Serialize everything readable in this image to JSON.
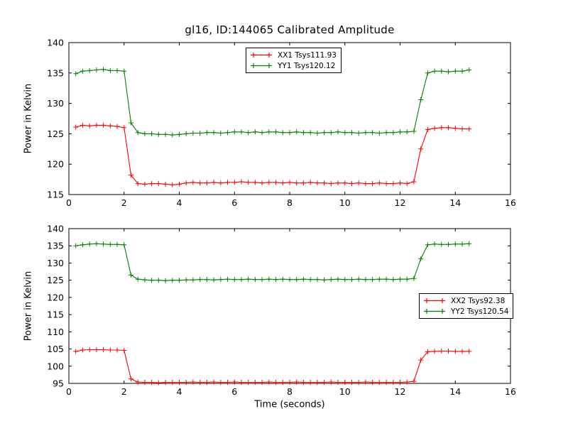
{
  "title": "gl16, ID:144065 Calibrated Amplitude",
  "colors": {
    "red": "#ff0000",
    "green": "#008000",
    "axis": "#000000",
    "background": "#ffffff"
  },
  "chart_data": [
    {
      "type": "line",
      "ylabel": "Power in Kelvin",
      "xlabel": "",
      "xlim": [
        0,
        16
      ],
      "ylim": [
        115,
        140
      ],
      "xticks": [
        0,
        2,
        4,
        6,
        8,
        10,
        12,
        14,
        16
      ],
      "yticks": [
        115,
        120,
        125,
        130,
        135,
        140
      ],
      "grid": false,
      "legend_position": "upper center",
      "x": [
        0.25,
        0.5,
        0.75,
        1,
        1.25,
        1.5,
        1.75,
        2,
        2.25,
        2.5,
        2.75,
        3,
        3.25,
        3.5,
        3.75,
        4,
        4.25,
        4.5,
        4.75,
        5,
        5.25,
        5.5,
        5.75,
        6,
        6.25,
        6.5,
        6.75,
        7,
        7.25,
        7.5,
        7.75,
        8,
        8.25,
        8.5,
        8.75,
        9,
        9.25,
        9.5,
        9.75,
        10,
        10.25,
        10.5,
        10.75,
        11,
        11.25,
        11.5,
        11.75,
        12,
        12.25,
        12.5,
        12.75,
        13,
        13.25,
        13.5,
        13.75,
        14,
        14.25,
        14.5
      ],
      "series": [
        {
          "name": "XX1 Tsys111.93",
          "color": "#ff0000",
          "marker": "+",
          "linestyle": "-",
          "values": [
            126.1,
            126.4,
            126.3,
            126.4,
            126.4,
            126.3,
            126.2,
            126.0,
            118.2,
            116.8,
            116.7,
            116.8,
            116.8,
            116.7,
            116.6,
            116.7,
            116.9,
            117.0,
            116.9,
            116.9,
            117.0,
            116.9,
            117.0,
            117.0,
            117.1,
            117.0,
            117.0,
            116.9,
            117.0,
            117.0,
            116.9,
            117.0,
            116.9,
            116.9,
            117.0,
            116.9,
            116.9,
            116.8,
            116.9,
            116.9,
            116.8,
            116.9,
            116.8,
            116.8,
            116.9,
            116.8,
            116.8,
            116.9,
            116.8,
            117.1,
            122.5,
            125.7,
            125.9,
            126.0,
            126.0,
            125.9,
            125.8,
            125.8
          ]
        },
        {
          "name": "YY1 Tsys120.12",
          "color": "#008000",
          "marker": "+",
          "linestyle": "-",
          "values": [
            134.9,
            135.3,
            135.4,
            135.5,
            135.6,
            135.4,
            135.4,
            135.3,
            126.8,
            125.2,
            125.0,
            125.0,
            124.9,
            124.9,
            124.8,
            124.9,
            125.0,
            125.1,
            125.1,
            125.2,
            125.2,
            125.1,
            125.2,
            125.3,
            125.3,
            125.2,
            125.3,
            125.2,
            125.3,
            125.3,
            125.2,
            125.2,
            125.3,
            125.2,
            125.2,
            125.1,
            125.2,
            125.2,
            125.3,
            125.2,
            125.2,
            125.1,
            125.2,
            125.2,
            125.1,
            125.2,
            125.2,
            125.3,
            125.3,
            125.4,
            130.6,
            135.0,
            135.3,
            135.3,
            135.2,
            135.3,
            135.3,
            135.5
          ]
        }
      ]
    },
    {
      "type": "line",
      "ylabel": "Power in Kelvin",
      "xlabel": "Time (seconds)",
      "xlim": [
        0,
        16
      ],
      "ylim": [
        95,
        140
      ],
      "xticks": [
        0,
        2,
        4,
        6,
        8,
        10,
        12,
        14,
        16
      ],
      "yticks": [
        95,
        100,
        105,
        110,
        115,
        120,
        125,
        130,
        135,
        140
      ],
      "grid": false,
      "legend_position": "center right",
      "x": [
        0.25,
        0.5,
        0.75,
        1,
        1.25,
        1.5,
        1.75,
        2,
        2.25,
        2.5,
        2.75,
        3,
        3.25,
        3.5,
        3.75,
        4,
        4.25,
        4.5,
        4.75,
        5,
        5.25,
        5.5,
        5.75,
        6,
        6.25,
        6.5,
        6.75,
        7,
        7.25,
        7.5,
        7.75,
        8,
        8.25,
        8.5,
        8.75,
        9,
        9.25,
        9.5,
        9.75,
        10,
        10.25,
        10.5,
        10.75,
        11,
        11.25,
        11.5,
        11.75,
        12,
        12.25,
        12.5,
        12.75,
        13,
        13.25,
        13.5,
        13.75,
        14,
        14.25,
        14.5
      ],
      "series": [
        {
          "name": "XX2 Tsys92.38",
          "color": "#ff0000",
          "marker": "+",
          "linestyle": "-",
          "values": [
            104.3,
            104.7,
            104.8,
            104.8,
            104.8,
            104.7,
            104.7,
            104.6,
            96.3,
            95.4,
            95.3,
            95.3,
            95.2,
            95.3,
            95.3,
            95.3,
            95.3,
            95.4,
            95.3,
            95.3,
            95.4,
            95.3,
            95.3,
            95.4,
            95.3,
            95.3,
            95.3,
            95.3,
            95.4,
            95.3,
            95.3,
            95.3,
            95.4,
            95.3,
            95.3,
            95.3,
            95.3,
            95.4,
            95.3,
            95.3,
            95.3,
            95.3,
            95.4,
            95.3,
            95.3,
            95.3,
            95.3,
            95.3,
            95.4,
            95.6,
            101.8,
            104.2,
            104.3,
            104.4,
            104.4,
            104.3,
            104.3,
            104.3
          ]
        },
        {
          "name": "YY2 Tsys120.54",
          "color": "#008000",
          "marker": "+",
          "linestyle": "-",
          "values": [
            135.0,
            135.3,
            135.5,
            135.6,
            135.5,
            135.4,
            135.4,
            135.3,
            126.5,
            125.3,
            125.1,
            125.0,
            125.0,
            124.9,
            125.0,
            125.0,
            125.1,
            125.1,
            125.2,
            125.2,
            125.1,
            125.2,
            125.3,
            125.2,
            125.2,
            125.3,
            125.2,
            125.2,
            125.3,
            125.2,
            125.3,
            125.2,
            125.2,
            125.3,
            125.2,
            125.2,
            125.1,
            125.2,
            125.3,
            125.2,
            125.2,
            125.3,
            125.2,
            125.2,
            125.3,
            125.3,
            125.2,
            125.3,
            125.3,
            125.5,
            131.2,
            135.3,
            135.5,
            135.4,
            135.4,
            135.5,
            135.5,
            135.6
          ]
        }
      ]
    }
  ]
}
